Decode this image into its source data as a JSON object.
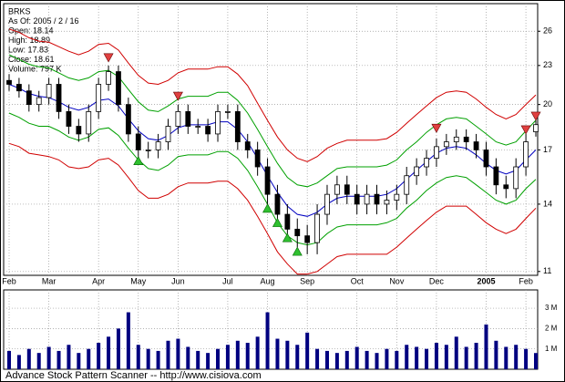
{
  "chart_data": {
    "type": "candlestick",
    "info_lines": [
      "BRKS",
      "As Of: 2005 / 2 / 16",
      "Open: 18.14",
      "High: 18.89",
      "Low: 17.83",
      "Close: 18.61",
      "Volume: 797 K"
    ],
    "footer": "Advance Stock Pattern Scanner -- http://www.cisiova.com",
    "categories": [
      "Feb",
      null,
      null,
      null,
      "Mar",
      null,
      null,
      null,
      null,
      "Apr",
      null,
      null,
      null,
      "May",
      null,
      null,
      null,
      "Jun",
      null,
      null,
      null,
      null,
      "Jul",
      null,
      null,
      null,
      "Aug",
      null,
      null,
      null,
      "Sep",
      null,
      null,
      null,
      null,
      "Oct",
      null,
      null,
      null,
      "Nov",
      null,
      null,
      null,
      "Dec",
      null,
      null,
      null,
      null,
      "2005",
      null,
      null,
      null,
      "Feb",
      null
    ],
    "open": [
      21.8,
      21.5,
      21,
      20,
      20.5,
      21.5,
      19.5,
      18.5,
      18,
      19.5,
      21.5,
      22.5,
      20,
      18,
      17,
      17,
      17.5,
      18.5,
      19.5,
      18.5,
      18.5,
      18,
      19.5,
      19.5,
      17.5,
      17,
      16,
      14.5,
      13.5,
      12.8,
      12.5,
      12.2,
      13.5,
      14.5,
      15,
      14.5,
      14,
      14.5,
      14,
      14.2,
      14.5,
      15.5,
      16,
      16.5,
      17.2,
      17.5,
      17.8,
      17.5,
      17,
      16,
      15,
      14.8,
      16,
      18.14
    ],
    "high": [
      22.3,
      22.0,
      21.5,
      21.0,
      22.0,
      22.0,
      20.0,
      19.0,
      20.0,
      22.0,
      23.0,
      23.0,
      20.5,
      18.5,
      17.5,
      18.0,
      19.0,
      20.0,
      20.0,
      19.0,
      19.0,
      20.0,
      20.0,
      20.0,
      18.0,
      17.5,
      16.5,
      15.0,
      14.0,
      13.3,
      13.0,
      14.0,
      15.0,
      15.5,
      15.5,
      15.0,
      15.0,
      15.0,
      14.7,
      15.0,
      16.0,
      16.5,
      17.0,
      17.7,
      18.0,
      18.3,
      18.3,
      18.0,
      17.5,
      16.5,
      15.5,
      16.5,
      18.0,
      18.89
    ],
    "low": [
      21.0,
      20.5,
      19.5,
      19.5,
      20.0,
      19.0,
      18.0,
      17.5,
      17.5,
      19.0,
      21.0,
      19.5,
      17.5,
      16.5,
      16.5,
      16.5,
      17.0,
      18.0,
      18.0,
      18.0,
      17.5,
      17.5,
      19.0,
      17.0,
      16.5,
      15.5,
      14.0,
      13.0,
      12.3,
      12.0,
      11.7,
      11.7,
      13.0,
      14.0,
      14.0,
      13.5,
      13.5,
      13.5,
      13.5,
      13.7,
      14.0,
      15.0,
      15.5,
      16.0,
      16.7,
      17.0,
      17.0,
      16.5,
      15.5,
      14.5,
      14.3,
      14.3,
      15.5,
      17.83
    ],
    "close": [
      21.5,
      21,
      20,
      20.5,
      21.5,
      19.5,
      18.5,
      18,
      19.5,
      21.5,
      22.5,
      20,
      18,
      17,
      17,
      17.5,
      18.5,
      19.5,
      18.5,
      18.5,
      18,
      19.5,
      19.5,
      17.5,
      17,
      16,
      14.5,
      13.5,
      12.8,
      12.5,
      12.2,
      13.5,
      14.5,
      15,
      14.5,
      14,
      14.5,
      14,
      14.2,
      14.5,
      15.5,
      16,
      16.5,
      17.2,
      17.5,
      17.8,
      17.5,
      17,
      16,
      15,
      14.8,
      16,
      17.5,
      18.61
    ],
    "candle_color": "#000000",
    "series": [
      {
        "color": "#d00000",
        "values": [
          26.2,
          25.9,
          25.4,
          25.1,
          25.0,
          24.6,
          24.2,
          23.9,
          24.2,
          24.8,
          24.9,
          24.3,
          23.2,
          22.2,
          21.6,
          21.5,
          21.8,
          22.4,
          22.7,
          22.7,
          22.7,
          22.9,
          22.9,
          22.3,
          21.4,
          20.1,
          18.9,
          17.8,
          17.0,
          16.5,
          16.3,
          16.6,
          17.1,
          17.4,
          17.6,
          17.6,
          17.6,
          17.6,
          17.7,
          18.1,
          18.7,
          19.3,
          19.9,
          20.5,
          20.9,
          21.0,
          20.9,
          20.4,
          19.8,
          19.3,
          19.0,
          19.3,
          20.0,
          20.7
        ]
      },
      {
        "color": "#00a000",
        "values": [
          23.9,
          23.5,
          23.1,
          22.9,
          22.8,
          22.4,
          22.0,
          21.8,
          22.0,
          22.5,
          22.6,
          22.1,
          21.1,
          20.2,
          19.6,
          19.5,
          19.9,
          20.4,
          20.6,
          20.6,
          20.6,
          20.9,
          20.9,
          20.3,
          19.4,
          18.3,
          17.2,
          16.2,
          15.4,
          15.0,
          14.9,
          15.1,
          15.5,
          15.9,
          16.0,
          16.0,
          16.0,
          16.0,
          16.1,
          16.4,
          17.0,
          17.5,
          18.1,
          18.6,
          19.0,
          19.1,
          19.0,
          18.5,
          18.0,
          17.5,
          17.3,
          17.5,
          18.2,
          18.9
        ]
      },
      {
        "color": "#0000c0",
        "values": [
          21.5,
          21.2,
          20.8,
          20.6,
          20.5,
          20.2,
          19.8,
          19.6,
          19.8,
          20.3,
          20.4,
          19.9,
          19.0,
          18.2,
          17.7,
          17.6,
          17.9,
          18.4,
          18.6,
          18.6,
          18.6,
          18.8,
          18.8,
          18.3,
          17.5,
          16.5,
          15.5,
          14.6,
          13.9,
          13.5,
          13.4,
          13.6,
          14.0,
          14.3,
          14.4,
          14.4,
          14.4,
          14.4,
          14.5,
          14.8,
          15.3,
          15.8,
          16.3,
          16.8,
          17.1,
          17.2,
          17.1,
          16.7,
          16.2,
          15.8,
          15.6,
          15.8,
          16.4,
          17.0
        ]
      },
      {
        "color": "#00a000",
        "values": [
          19.4,
          19.1,
          18.7,
          18.5,
          18.5,
          18.2,
          17.8,
          17.6,
          17.8,
          18.3,
          18.4,
          17.9,
          17.1,
          16.4,
          15.9,
          15.8,
          16.1,
          16.6,
          16.7,
          16.7,
          16.7,
          16.9,
          16.9,
          16.5,
          15.8,
          14.9,
          14.0,
          13.1,
          12.5,
          12.2,
          12.1,
          12.2,
          12.6,
          12.9,
          13.0,
          13.0,
          13.0,
          13.0,
          13.1,
          13.3,
          13.8,
          14.2,
          14.7,
          15.1,
          15.4,
          15.5,
          15.4,
          15.0,
          14.6,
          14.2,
          14.0,
          14.2,
          14.8,
          15.3
        ]
      },
      {
        "color": "#d00000",
        "values": [
          17.4,
          17.2,
          16.8,
          16.7,
          16.6,
          16.4,
          16.0,
          15.9,
          16.0,
          16.4,
          16.5,
          16.1,
          15.4,
          14.7,
          14.3,
          14.3,
          14.5,
          14.9,
          15.1,
          15.1,
          15.1,
          15.2,
          15.2,
          14.8,
          14.2,
          13.4,
          12.6,
          11.8,
          11.3,
          10.9,
          10.9,
          11.0,
          11.3,
          11.6,
          11.7,
          11.7,
          11.7,
          11.7,
          11.7,
          12.0,
          12.4,
          12.8,
          13.2,
          13.6,
          13.9,
          13.9,
          13.9,
          13.5,
          13.1,
          12.8,
          12.6,
          12.8,
          13.3,
          13.8
        ]
      }
    ],
    "sell_signals": {
      "color": "#e04040",
      "values": [
        null,
        null,
        null,
        null,
        null,
        null,
        null,
        null,
        null,
        null,
        23.3,
        null,
        null,
        null,
        null,
        null,
        null,
        20.3,
        null,
        null,
        null,
        null,
        null,
        null,
        null,
        null,
        null,
        null,
        null,
        null,
        null,
        null,
        null,
        null,
        null,
        null,
        null,
        null,
        null,
        null,
        null,
        null,
        null,
        18.1,
        null,
        null,
        null,
        null,
        null,
        null,
        null,
        null,
        18.0,
        18.9
      ]
    },
    "buy_signals": {
      "color": "#30c030",
      "values": [
        null,
        null,
        null,
        null,
        null,
        null,
        null,
        null,
        null,
        null,
        null,
        null,
        null,
        16.6,
        null,
        null,
        null,
        null,
        null,
        null,
        null,
        null,
        null,
        null,
        null,
        null,
        14.0,
        13.3,
        12.6,
        12.0,
        null,
        null,
        null,
        null,
        null,
        null,
        null,
        null,
        null,
        null,
        null,
        null,
        null,
        null,
        null,
        null,
        null,
        null,
        null,
        null,
        null,
        null,
        null,
        null
      ]
    },
    "log": true,
    "grid": true,
    "ylim": [
      10.85,
      28.7
    ],
    "yticks": [
      11,
      14,
      17,
      20,
      23,
      26
    ],
    "volume": {
      "color": "#000080",
      "values": [
        0.9,
        0.7,
        1.0,
        0.8,
        1.1,
        0.9,
        1.2,
        0.8,
        1.0,
        1.3,
        1.6,
        2.0,
        2.8,
        1.2,
        1.0,
        0.9,
        1.4,
        1.5,
        1.1,
        0.9,
        0.8,
        1.0,
        1.2,
        1.4,
        1.3,
        1.6,
        2.8,
        1.5,
        1.4,
        1.2,
        1.8,
        1.0,
        0.9,
        0.8,
        0.9,
        1.1,
        0.9,
        0.8,
        1.0,
        0.9,
        1.2,
        1.1,
        1.0,
        1.3,
        1.2,
        1.6,
        1.1,
        1.3,
        2.2,
        1.4,
        1.1,
        1.2,
        1.0,
        0.797
      ],
      "ylim": [
        0,
        3.9
      ],
      "yticks": [
        {
          "value": 1,
          "label": "1 M"
        },
        {
          "value": 2,
          "label": "2 M"
        },
        {
          "value": 3,
          "label": "3 M"
        }
      ]
    }
  }
}
